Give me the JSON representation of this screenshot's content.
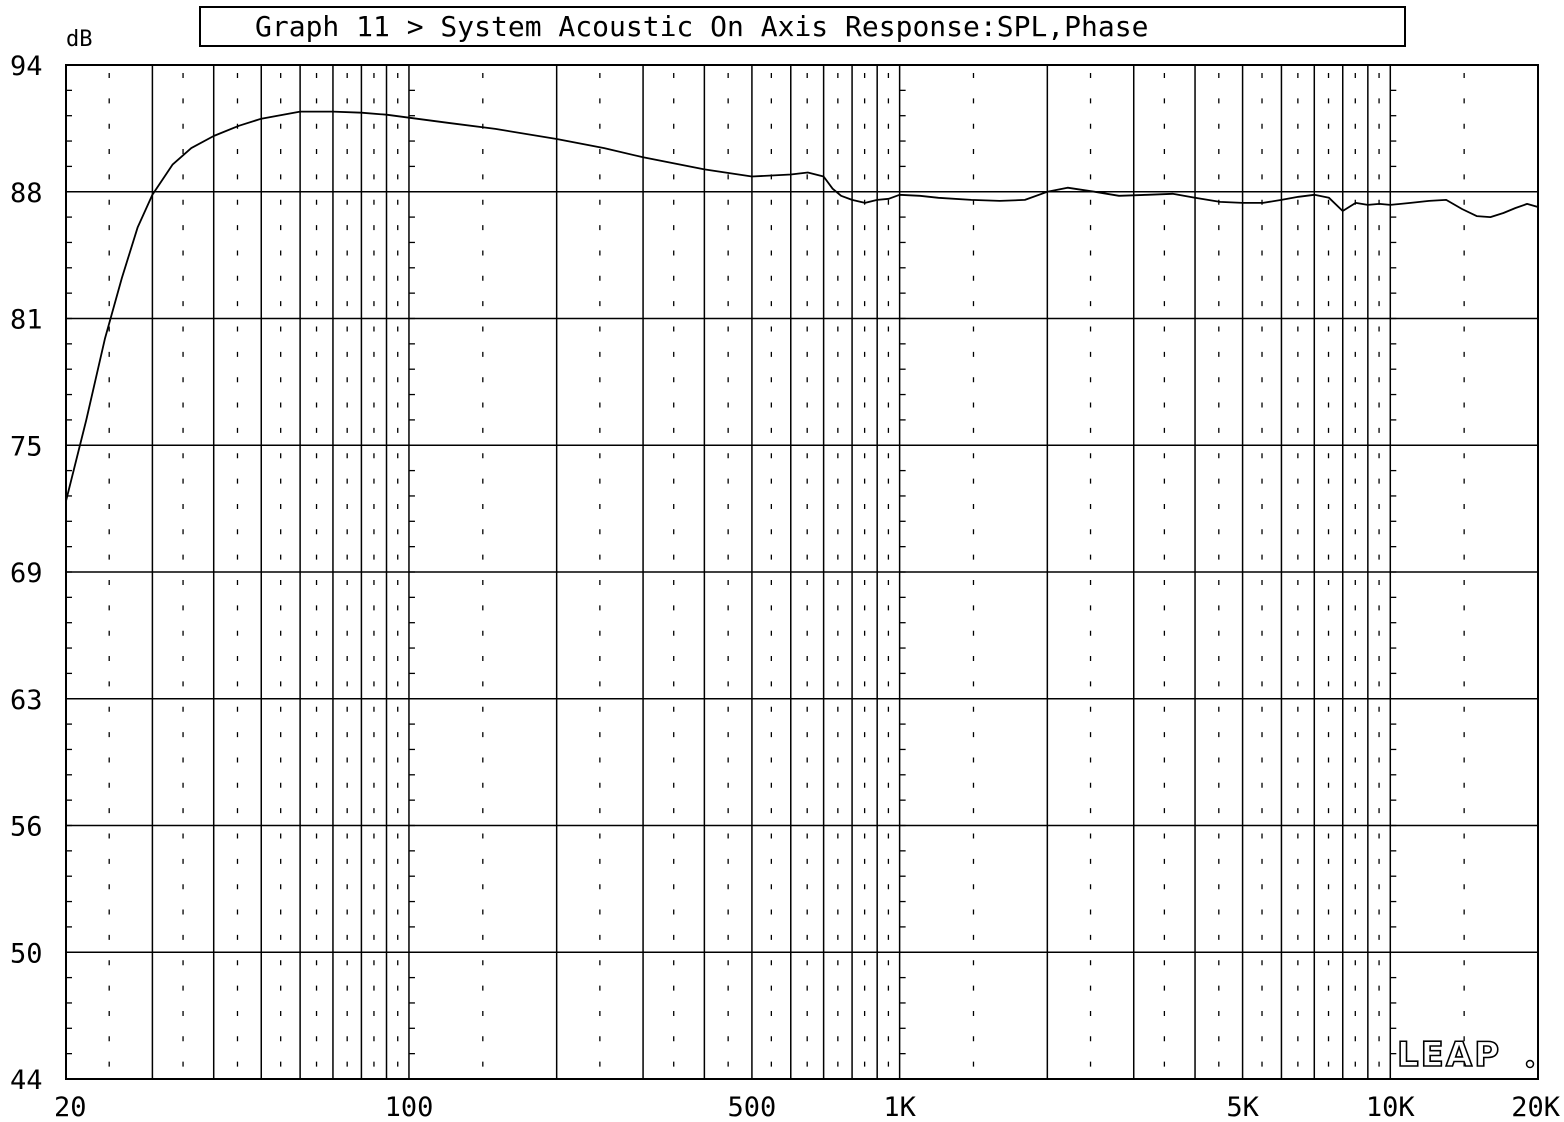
{
  "chart_data": {
    "type": "line",
    "title": "Graph 11 > System Acoustic On Axis Response:SPL,Phase",
    "ylabel": "dB",
    "xscale": "log",
    "xlim": [
      20,
      20000
    ],
    "ylim": [
      44,
      94
    ],
    "grid": true,
    "y_ticks": [
      "94",
      "88",
      "81",
      "75",
      "69",
      "63",
      "56",
      "50",
      "44"
    ],
    "x_ticks": [
      {
        "label": "20",
        "value": 20
      },
      {
        "label": "100",
        "value": 100
      },
      {
        "label": "500",
        "value": 500
      },
      {
        "label": "1K",
        "value": 1000
      },
      {
        "label": "5K",
        "value": 5000
      },
      {
        "label": "10K",
        "value": 10000
      },
      {
        "label": "20K",
        "value": 20000
      }
    ],
    "series": [
      {
        "x": [
          20,
          22,
          24,
          26,
          28,
          30,
          33,
          36,
          40,
          45,
          50,
          60,
          70,
          80,
          90,
          100,
          120,
          150,
          200,
          250,
          300,
          400,
          500,
          600,
          650,
          700,
          730,
          760,
          800,
          850,
          900,
          950,
          1000,
          1100,
          1200,
          1400,
          1600,
          1800,
          2000,
          2200,
          2500,
          2800,
          3200,
          3600,
          4000,
          4500,
          5000,
          5500,
          6000,
          6500,
          7000,
          7500,
          8000,
          8500,
          9000,
          9500,
          10000,
          11000,
          12000,
          13000,
          14000,
          15000,
          16000,
          17000,
          18000,
          19000,
          20000
        ],
        "y": [
          72.5,
          76.5,
          80.5,
          83.5,
          86.0,
          87.6,
          89.1,
          89.9,
          90.5,
          91.0,
          91.35,
          91.7,
          91.7,
          91.65,
          91.55,
          91.4,
          91.15,
          90.85,
          90.35,
          89.9,
          89.45,
          88.85,
          88.5,
          88.6,
          88.7,
          88.5,
          87.9,
          87.55,
          87.35,
          87.2,
          87.35,
          87.4,
          87.6,
          87.55,
          87.45,
          87.35,
          87.3,
          87.35,
          87.75,
          87.95,
          87.75,
          87.55,
          87.6,
          87.65,
          87.45,
          87.25,
          87.2,
          87.2,
          87.35,
          87.5,
          87.6,
          87.45,
          86.8,
          87.2,
          87.1,
          87.15,
          87.1,
          87.2,
          87.3,
          87.35,
          86.9,
          86.55,
          86.5,
          86.7,
          86.95,
          87.15,
          87.0
        ]
      }
    ]
  },
  "logo": {
    "text": "LEAP"
  }
}
